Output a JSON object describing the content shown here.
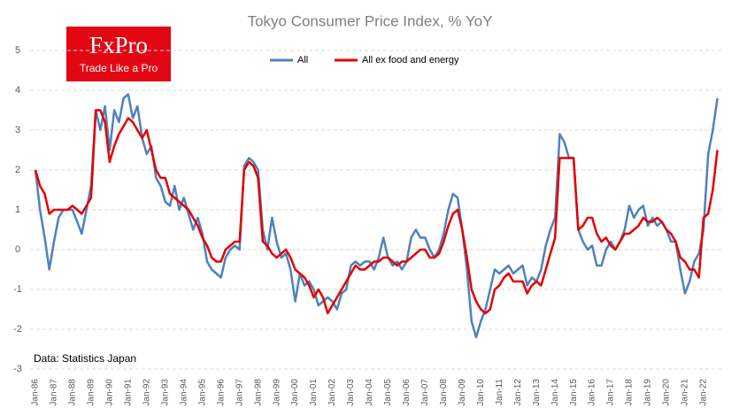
{
  "chart_data": {
    "type": "line",
    "title": "Tokyo Consumer Price Index, % YoY",
    "annotation": "Data: Statistics Japan",
    "logo": {
      "name": "FxPro",
      "tagline": "Trade Like a Pro"
    },
    "categories": [
      "Jan-86",
      null,
      null,
      null,
      "Jan-87",
      null,
      null,
      null,
      "Jan-88",
      null,
      null,
      null,
      "Jan-89",
      null,
      null,
      null,
      "Jan-90",
      null,
      null,
      null,
      "Jan-91",
      null,
      null,
      null,
      "Jan-92",
      null,
      null,
      null,
      "Jan-93",
      null,
      null,
      null,
      "Jan-94",
      null,
      null,
      null,
      "Jan-95",
      null,
      null,
      null,
      "Jan-96",
      null,
      null,
      null,
      "Jan-97",
      null,
      null,
      null,
      "Jan-98",
      null,
      null,
      null,
      "Jan-99",
      null,
      null,
      null,
      "Jan-00",
      null,
      null,
      null,
      "Jan-01",
      null,
      null,
      null,
      "Jan-02",
      null,
      null,
      null,
      "Jan-03",
      null,
      null,
      null,
      "Jan-04",
      null,
      null,
      null,
      "Jan-05",
      null,
      null,
      null,
      "Jan-06",
      null,
      null,
      null,
      "Jan-07",
      null,
      null,
      null,
      "Jan-08",
      null,
      null,
      null,
      "Jan-09",
      null,
      null,
      null,
      "Jan-10",
      null,
      null,
      null,
      "Jan-11",
      null,
      null,
      null,
      "Jan-12",
      null,
      null,
      null,
      "Jan-13",
      null,
      null,
      null,
      "Jan-14",
      null,
      null,
      null,
      "Jan-15",
      null,
      null,
      null,
      "Jan-16",
      null,
      null,
      null,
      "Jan-17",
      null,
      null,
      null,
      "Jan-18",
      null,
      null,
      null,
      "Jan-19",
      null,
      null,
      null,
      "Jan-20",
      null,
      null,
      null,
      "Jan-21",
      null,
      null,
      null,
      "Jan-22",
      null,
      null,
      null
    ],
    "series": [
      {
        "name": "All",
        "color": "#4f81bd",
        "values": [
          2.0,
          1.0,
          0.3,
          -0.5,
          0.2,
          0.8,
          1.0,
          1.0,
          1.0,
          0.7,
          0.4,
          1.0,
          1.6,
          3.5,
          3.0,
          3.6,
          2.5,
          3.5,
          3.2,
          3.8,
          3.9,
          3.3,
          3.6,
          2.8,
          2.4,
          2.6,
          1.8,
          1.6,
          1.2,
          1.1,
          1.6,
          1.0,
          1.3,
          0.9,
          0.5,
          0.8,
          0.4,
          -0.3,
          -0.5,
          -0.6,
          -0.7,
          -0.2,
          0.0,
          0.1,
          0.0,
          2.1,
          2.3,
          2.2,
          2.0,
          0.5,
          0.0,
          0.8,
          0.2,
          -0.2,
          -0.1,
          -0.5,
          -1.3,
          -0.6,
          -0.9,
          -0.8,
          -1.0,
          -1.4,
          -1.3,
          -1.2,
          -1.3,
          -1.5,
          -1.1,
          -1.0,
          -0.4,
          -0.3,
          -0.4,
          -0.3,
          -0.3,
          -0.5,
          -0.2,
          0.3,
          -0.2,
          -0.4,
          -0.3,
          -0.5,
          -0.3,
          0.3,
          0.5,
          0.3,
          0.3,
          0.0,
          -0.2,
          0.0,
          0.4,
          1.0,
          1.4,
          1.3,
          0.5,
          -0.5,
          -1.8,
          -2.2,
          -1.8,
          -1.5,
          -1.0,
          -0.5,
          -0.6,
          -0.5,
          -0.4,
          -0.6,
          -0.5,
          -0.4,
          -0.9,
          -0.7,
          -0.8,
          -0.5,
          0.1,
          0.5,
          0.8,
          2.9,
          2.7,
          2.3,
          2.3,
          0.5,
          0.2,
          0.0,
          0.1,
          -0.4,
          -0.4,
          0.0,
          0.2,
          0.0,
          0.2,
          0.5,
          1.1,
          0.8,
          1.0,
          1.1,
          0.6,
          0.8,
          0.6,
          0.7,
          0.5,
          0.2,
          0.2,
          -0.5,
          -1.1,
          -0.8,
          -0.3,
          -0.1,
          0.5,
          2.4,
          3.0,
          3.8
        ]
      },
      {
        "name": "All ex food and energy",
        "color": "#e60000",
        "values": [
          2.0,
          1.6,
          1.4,
          0.9,
          1.0,
          1.0,
          1.0,
          1.0,
          1.1,
          1.0,
          0.9,
          1.1,
          1.3,
          3.5,
          3.5,
          3.2,
          2.2,
          2.6,
          2.9,
          3.1,
          3.3,
          3.2,
          3.0,
          2.8,
          3.0,
          2.5,
          2.0,
          1.8,
          1.8,
          1.4,
          1.3,
          1.2,
          1.1,
          1.0,
          0.8,
          0.6,
          0.3,
          0.1,
          -0.2,
          -0.3,
          -0.3,
          0.0,
          0.1,
          0.2,
          0.2,
          2.0,
          2.2,
          2.1,
          1.8,
          0.2,
          0.1,
          -0.1,
          -0.2,
          -0.1,
          0.0,
          -0.2,
          -0.5,
          -0.6,
          -0.7,
          -0.9,
          -1.2,
          -1.0,
          -1.2,
          -1.6,
          -1.4,
          -1.2,
          -1.0,
          -0.8,
          -0.6,
          -0.4,
          -0.5,
          -0.5,
          -0.4,
          -0.3,
          -0.3,
          -0.2,
          -0.2,
          -0.3,
          -0.4,
          -0.3,
          -0.3,
          -0.2,
          -0.1,
          0.0,
          0.0,
          -0.2,
          -0.2,
          -0.1,
          0.2,
          0.6,
          0.9,
          1.0,
          0.5,
          -0.2,
          -1.0,
          -1.3,
          -1.5,
          -1.6,
          -1.5,
          -1.0,
          -0.9,
          -0.7,
          -0.6,
          -0.8,
          -0.8,
          -0.8,
          -1.1,
          -0.9,
          -0.8,
          -0.9,
          -0.5,
          -0.1,
          0.3,
          2.3,
          2.3,
          2.3,
          2.3,
          0.5,
          0.6,
          0.8,
          0.8,
          0.4,
          0.2,
          0.3,
          0.1,
          0.0,
          0.2,
          0.4,
          0.4,
          0.5,
          0.6,
          0.8,
          0.7,
          0.7,
          0.8,
          0.7,
          0.5,
          0.4,
          0.2,
          -0.2,
          -0.3,
          -0.5,
          -0.5,
          -0.7,
          0.8,
          0.9,
          1.5,
          2.5
        ]
      }
    ],
    "ylim": [
      -3,
      5
    ],
    "yticks": [
      -3,
      -2,
      -1,
      0,
      1,
      2,
      3,
      4,
      5
    ],
    "grid": true,
    "legend": "top"
  }
}
